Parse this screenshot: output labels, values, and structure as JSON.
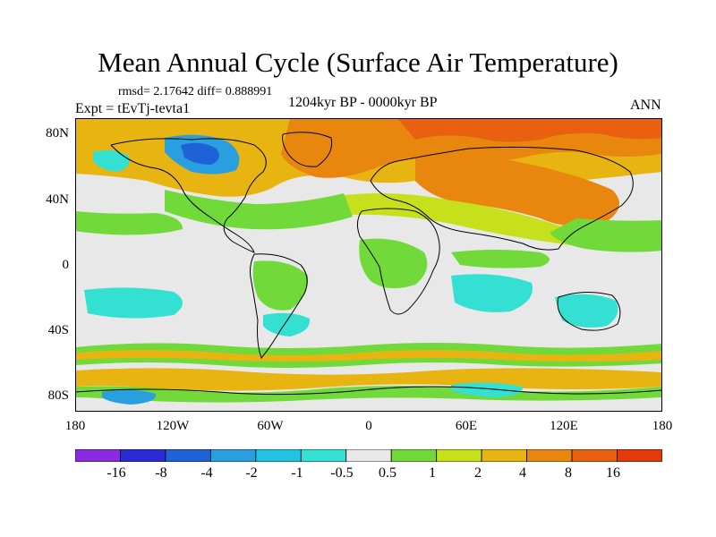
{
  "title": "Mean Annual Cycle (Surface Air Temperature)",
  "stats": "rmsd= 2.17642 diff= 0.888991",
  "period": "1204kyr BP - 0000kyr BP",
  "experiment": "Expt = tEvTj-tevta1",
  "season": "ANN",
  "lat_labels": [
    "80N",
    "40N",
    "0",
    "40S",
    "80S"
  ],
  "lon_labels": [
    "180",
    "120W",
    "60W",
    "0",
    "60E",
    "120E",
    "180"
  ],
  "colorbar": {
    "labels": [
      "-16",
      "-8",
      "-4",
      "-2",
      "-1",
      "-0.5",
      "0.5",
      "1",
      "2",
      "4",
      "8",
      "16"
    ],
    "colors": [
      "#8a2be2",
      "#2b2bd6",
      "#1f62d8",
      "#2a9fe0",
      "#22c3e0",
      "#33e0d2",
      "#e8e8e8",
      "#72d93a",
      "#c7e01c",
      "#e8b412",
      "#e8860e",
      "#e86010",
      "#e23a0c"
    ]
  }
}
